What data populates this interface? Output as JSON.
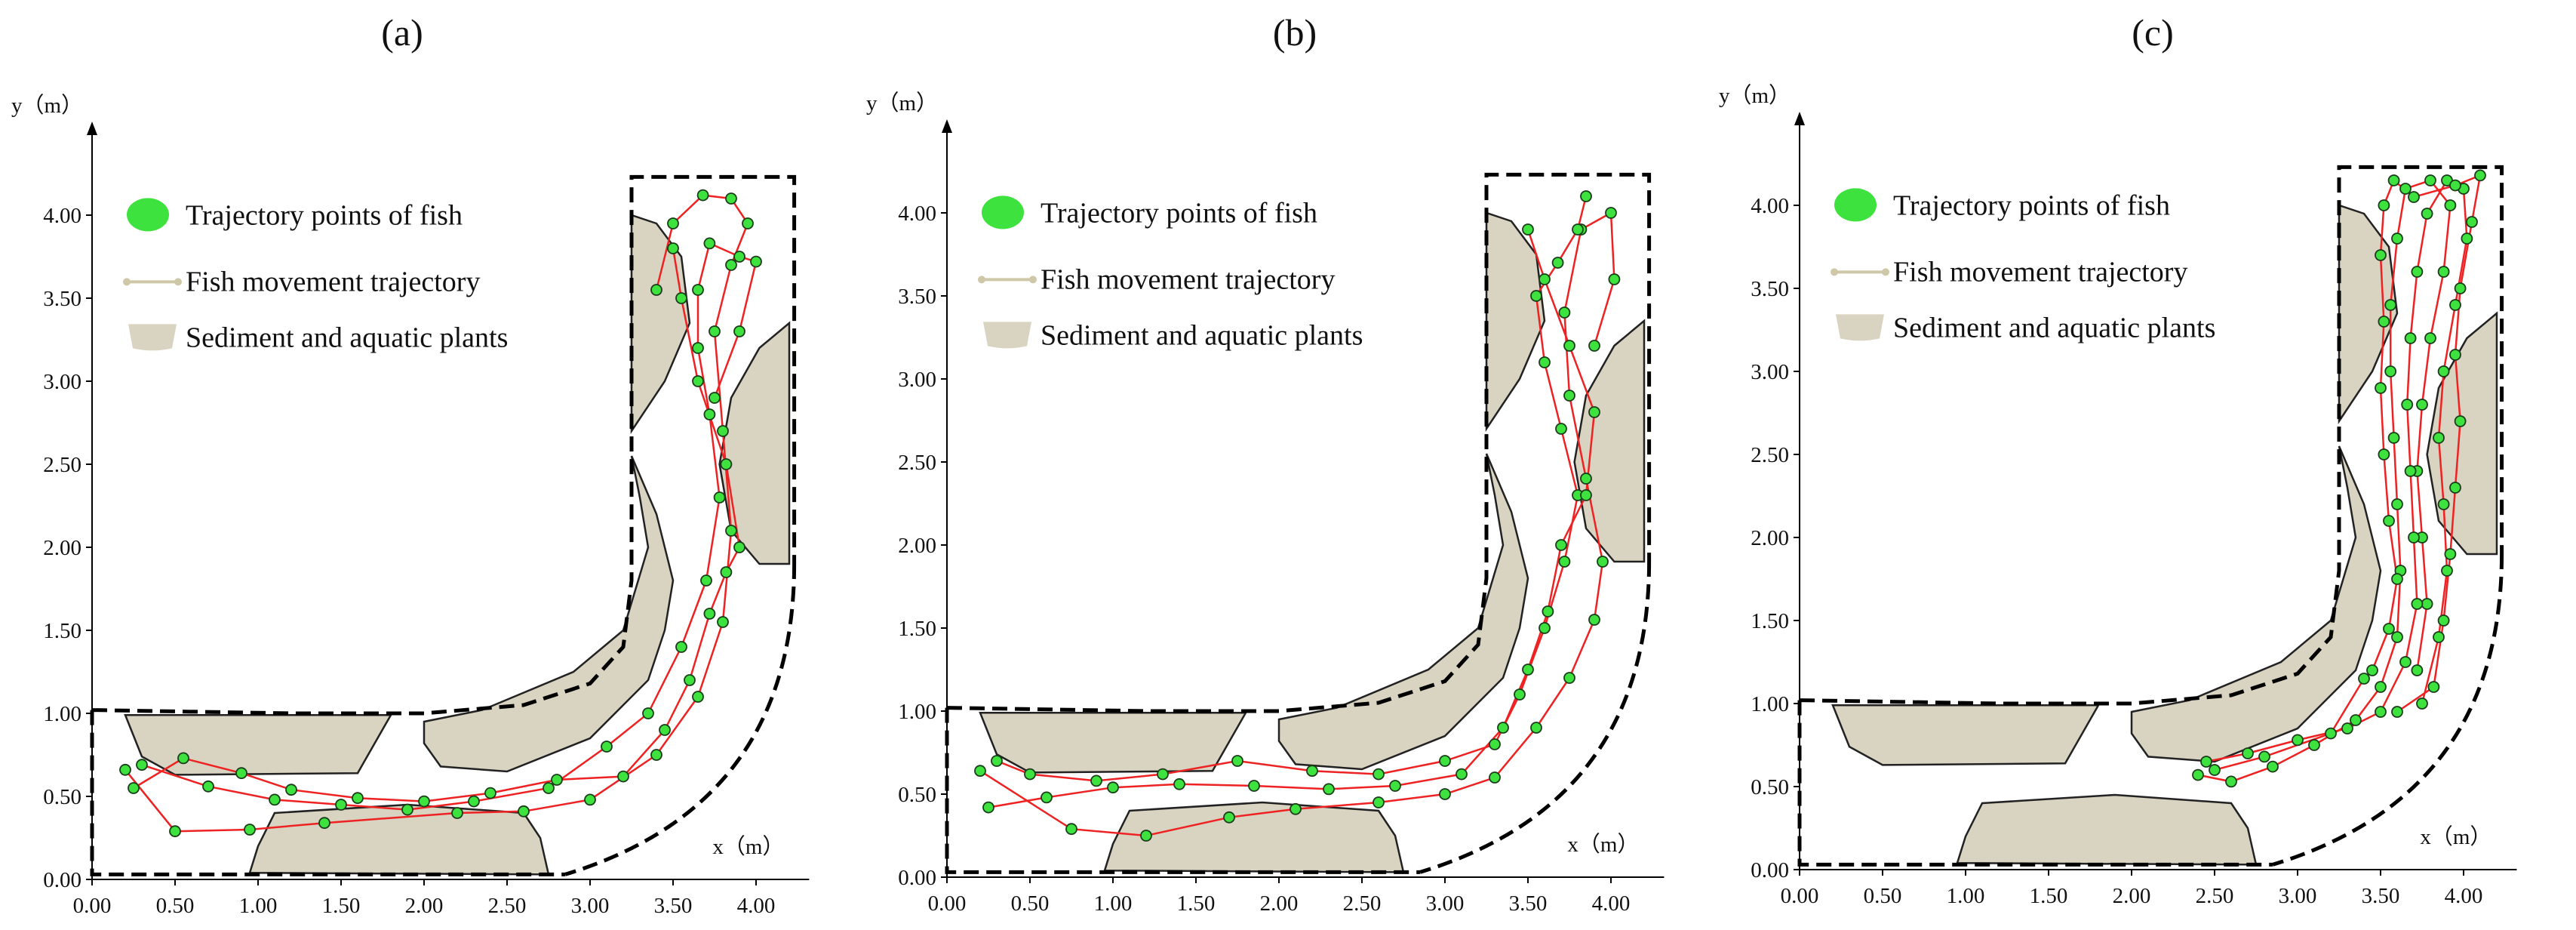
{
  "chart_data": [
    {
      "type": "scatter",
      "title": "(a)",
      "xlabel": "x（m）",
      "ylabel": "y（m）",
      "xlim": [
        0,
        4.2
      ],
      "ylim": [
        0,
        4.25
      ],
      "xticks": [
        "0.00",
        "0.50",
        "1.00",
        "1.50",
        "2.00",
        "2.50",
        "3.00",
        "3.50",
        "4.00"
      ],
      "yticks": [
        "0.00",
        "0.50",
        "1.00",
        "1.50",
        "2.00",
        "2.50",
        "3.00",
        "3.50",
        "4.00"
      ],
      "legend": [
        "Trajectory points of fish",
        "Fish movement trajectory",
        "Sediment and aquatic plants"
      ],
      "series": [
        {
          "values": [
            [
              0.2,
              0.66
            ],
            [
              0.5,
              0.29
            ],
            [
              0.95,
              0.3
            ],
            [
              1.4,
              0.34
            ],
            [
              2.2,
              0.4
            ],
            [
              2.6,
              0.41
            ],
            [
              3.0,
              0.48
            ],
            [
              3.4,
              0.75
            ],
            [
              3.65,
              1.1
            ],
            [
              3.8,
              1.55
            ],
            [
              3.85,
              2.1
            ],
            [
              3.8,
              2.7
            ],
            [
              3.75,
              3.3
            ],
            [
              3.85,
              3.7
            ],
            [
              3.95,
              3.95
            ],
            [
              3.85,
              4.1
            ],
            [
              3.68,
              4.12
            ],
            [
              3.5,
              3.95
            ],
            [
              3.4,
              3.55
            ]
          ]
        },
        {
          "values": [
            [
              0.3,
              0.69
            ],
            [
              0.7,
              0.56
            ],
            [
              1.1,
              0.48
            ],
            [
              1.5,
              0.45
            ],
            [
              1.9,
              0.42
            ],
            [
              2.3,
              0.47
            ],
            [
              2.75,
              0.55
            ],
            [
              3.1,
              0.8
            ],
            [
              3.35,
              1.0
            ],
            [
              3.55,
              1.4
            ],
            [
              3.7,
              1.8
            ],
            [
              3.78,
              2.3
            ],
            [
              3.72,
              2.8
            ],
            [
              3.65,
              3.2
            ],
            [
              3.65,
              3.55
            ],
            [
              3.72,
              3.83
            ],
            [
              3.9,
              3.75
            ],
            [
              4.0,
              3.72
            ],
            [
              3.9,
              3.3
            ],
            [
              3.75,
              2.9
            ]
          ]
        },
        {
          "values": [
            [
              0.25,
              0.55
            ],
            [
              0.55,
              0.73
            ],
            [
              0.9,
              0.64
            ],
            [
              1.2,
              0.54
            ],
            [
              1.6,
              0.49
            ],
            [
              2.0,
              0.47
            ],
            [
              2.4,
              0.52
            ],
            [
              2.8,
              0.6
            ],
            [
              3.2,
              0.62
            ],
            [
              3.45,
              0.9
            ],
            [
              3.6,
              1.2
            ],
            [
              3.72,
              1.6
            ],
            [
              3.82,
              1.85
            ],
            [
              3.9,
              2.0
            ],
            [
              3.82,
              2.5
            ],
            [
              3.65,
              3.0
            ],
            [
              3.55,
              3.5
            ],
            [
              3.5,
              3.8
            ]
          ]
        }
      ]
    },
    {
      "type": "scatter",
      "title": "(b)",
      "xlabel": "x（m）",
      "ylabel": "y（m）",
      "xlim": [
        0,
        4.2
      ],
      "ylim": [
        0,
        4.25
      ],
      "xticks": [
        "0.00",
        "0.50",
        "1.00",
        "1.50",
        "2.00",
        "2.50",
        "3.00",
        "3.50",
        "4.00"
      ],
      "yticks": [
        "0.00",
        "0.50",
        "1.00",
        "1.50",
        "2.00",
        "2.50",
        "3.00",
        "3.50",
        "4.00"
      ],
      "legend": [
        "Trajectory points of fish",
        "Fish movement trajectory",
        "Sediment and aquatic plants"
      ],
      "series": [
        {
          "values": [
            [
              0.2,
              0.64
            ],
            [
              0.75,
              0.29
            ],
            [
              1.2,
              0.25
            ],
            [
              1.7,
              0.36
            ],
            [
              2.1,
              0.41
            ],
            [
              2.6,
              0.45
            ],
            [
              3.0,
              0.5
            ],
            [
              3.3,
              0.6
            ],
            [
              3.55,
              0.9
            ],
            [
              3.75,
              1.2
            ],
            [
              3.9,
              1.55
            ],
            [
              3.95,
              1.9
            ],
            [
              3.85,
              2.4
            ],
            [
              3.75,
              2.9
            ],
            [
              3.72,
              3.4
            ],
            [
              3.82,
              3.9
            ],
            [
              4.0,
              4.0
            ],
            [
              4.02,
              3.6
            ],
            [
              3.9,
              3.2
            ]
          ]
        },
        {
          "values": [
            [
              0.3,
              0.7
            ],
            [
              0.5,
              0.62
            ],
            [
              0.9,
              0.58
            ],
            [
              1.3,
              0.62
            ],
            [
              1.75,
              0.7
            ],
            [
              2.2,
              0.64
            ],
            [
              2.6,
              0.62
            ],
            [
              3.0,
              0.7
            ],
            [
              3.3,
              0.8
            ],
            [
              3.45,
              1.1
            ],
            [
              3.6,
              1.5
            ],
            [
              3.72,
              1.9
            ],
            [
              3.8,
              2.3
            ],
            [
              3.7,
              2.7
            ],
            [
              3.6,
              3.1
            ],
            [
              3.55,
              3.5
            ],
            [
              3.68,
              3.7
            ],
            [
              3.8,
              3.9
            ],
            [
              3.85,
              4.1
            ]
          ]
        },
        {
          "values": [
            [
              0.25,
              0.42
            ],
            [
              0.6,
              0.48
            ],
            [
              1.0,
              0.54
            ],
            [
              1.4,
              0.56
            ],
            [
              1.85,
              0.55
            ],
            [
              2.3,
              0.53
            ],
            [
              2.7,
              0.55
            ],
            [
              3.1,
              0.62
            ],
            [
              3.35,
              0.9
            ],
            [
              3.5,
              1.25
            ],
            [
              3.62,
              1.6
            ],
            [
              3.7,
              2.0
            ],
            [
              3.85,
              2.3
            ],
            [
              3.9,
              2.8
            ],
            [
              3.75,
              3.2
            ],
            [
              3.6,
              3.6
            ],
            [
              3.5,
              3.9
            ]
          ]
        }
      ]
    },
    {
      "type": "scatter",
      "title": "(c)",
      "xlabel": "x（m）",
      "ylabel": "y（m）",
      "xlim": [
        0,
        4.2
      ],
      "ylim": [
        0,
        4.25
      ],
      "xticks": [
        "0.00",
        "0.50",
        "1.00",
        "1.50",
        "2.00",
        "2.50",
        "3.00",
        "3.50",
        "4.00"
      ],
      "yticks": [
        "0.00",
        "0.50",
        "1.00",
        "1.50",
        "2.00",
        "2.50",
        "3.00",
        "3.50",
        "4.00"
      ],
      "legend": [
        "Trajectory points of fish",
        "Fish movement trajectory",
        "Sediment and aquatic plants"
      ],
      "series": [
        {
          "values": [
            [
              2.4,
              0.57
            ],
            [
              2.6,
              0.53
            ],
            [
              2.85,
              0.62
            ],
            [
              3.1,
              0.75
            ],
            [
              3.35,
              0.9
            ],
            [
              3.5,
              1.1
            ],
            [
              3.6,
              1.4
            ],
            [
              3.62,
              1.8
            ],
            [
              3.6,
              2.2
            ],
            [
              3.58,
              2.6
            ],
            [
              3.56,
              3.0
            ],
            [
              3.56,
              3.4
            ],
            [
              3.6,
              3.8
            ],
            [
              3.65,
              4.1
            ],
            [
              3.8,
              4.15
            ],
            [
              3.92,
              4.0
            ],
            [
              3.88,
              3.6
            ],
            [
              3.8,
              3.2
            ],
            [
              3.75,
              2.8
            ],
            [
              3.72,
              2.4
            ],
            [
              3.75,
              2.0
            ],
            [
              3.78,
              1.6
            ],
            [
              3.72,
              1.2
            ]
          ]
        },
        {
          "values": [
            [
              2.45,
              0.65
            ],
            [
              2.7,
              0.7
            ],
            [
              3.0,
              0.78
            ],
            [
              3.3,
              0.85
            ],
            [
              3.5,
              0.95
            ],
            [
              3.65,
              1.25
            ],
            [
              3.72,
              1.6
            ],
            [
              3.7,
              2.0
            ],
            [
              3.68,
              2.4
            ],
            [
              3.66,
              2.8
            ],
            [
              3.68,
              3.2
            ],
            [
              3.72,
              3.6
            ],
            [
              3.78,
              3.95
            ],
            [
              3.9,
              4.15
            ],
            [
              4.0,
              4.1
            ],
            [
              4.02,
              3.8
            ],
            [
              3.95,
              3.4
            ],
            [
              3.88,
              3.0
            ],
            [
              3.85,
              2.6
            ],
            [
              3.88,
              2.2
            ],
            [
              3.9,
              1.8
            ],
            [
              3.85,
              1.4
            ],
            [
              3.75,
              1.0
            ]
          ]
        },
        {
          "values": [
            [
              2.5,
              0.6
            ],
            [
              2.8,
              0.68
            ],
            [
              3.2,
              0.82
            ],
            [
              3.4,
              1.15
            ],
            [
              3.45,
              1.2
            ],
            [
              3.55,
              1.45
            ],
            [
              3.6,
              1.75
            ],
            [
              3.55,
              2.1
            ],
            [
              3.52,
              2.5
            ],
            [
              3.5,
              2.9
            ],
            [
              3.52,
              3.3
            ],
            [
              3.5,
              3.7
            ],
            [
              3.52,
              4.0
            ],
            [
              3.58,
              4.15
            ],
            [
              3.7,
              4.05
            ],
            [
              3.95,
              4.12
            ],
            [
              4.1,
              4.18
            ],
            [
              4.05,
              3.9
            ],
            [
              3.98,
              3.5
            ],
            [
              3.95,
              3.1
            ],
            [
              3.98,
              2.7
            ],
            [
              3.95,
              2.3
            ],
            [
              3.92,
              1.9
            ],
            [
              3.88,
              1.5
            ],
            [
              3.82,
              1.1
            ],
            [
              3.6,
              0.95
            ]
          ]
        }
      ]
    }
  ],
  "colors": {
    "point_fill": "#3ee23e",
    "point_stroke": "#1a3d1a",
    "trajectory": "#ee2222",
    "sediment_fill": "#d9d3c1",
    "sediment_stroke": "#222222",
    "boundary": "#000000",
    "legend_line": "#cfc8a8"
  },
  "icons": {
    "legend_point": "green-circle-icon",
    "legend_line": "line-with-dots-icon",
    "legend_patch": "sediment-patch-icon"
  }
}
